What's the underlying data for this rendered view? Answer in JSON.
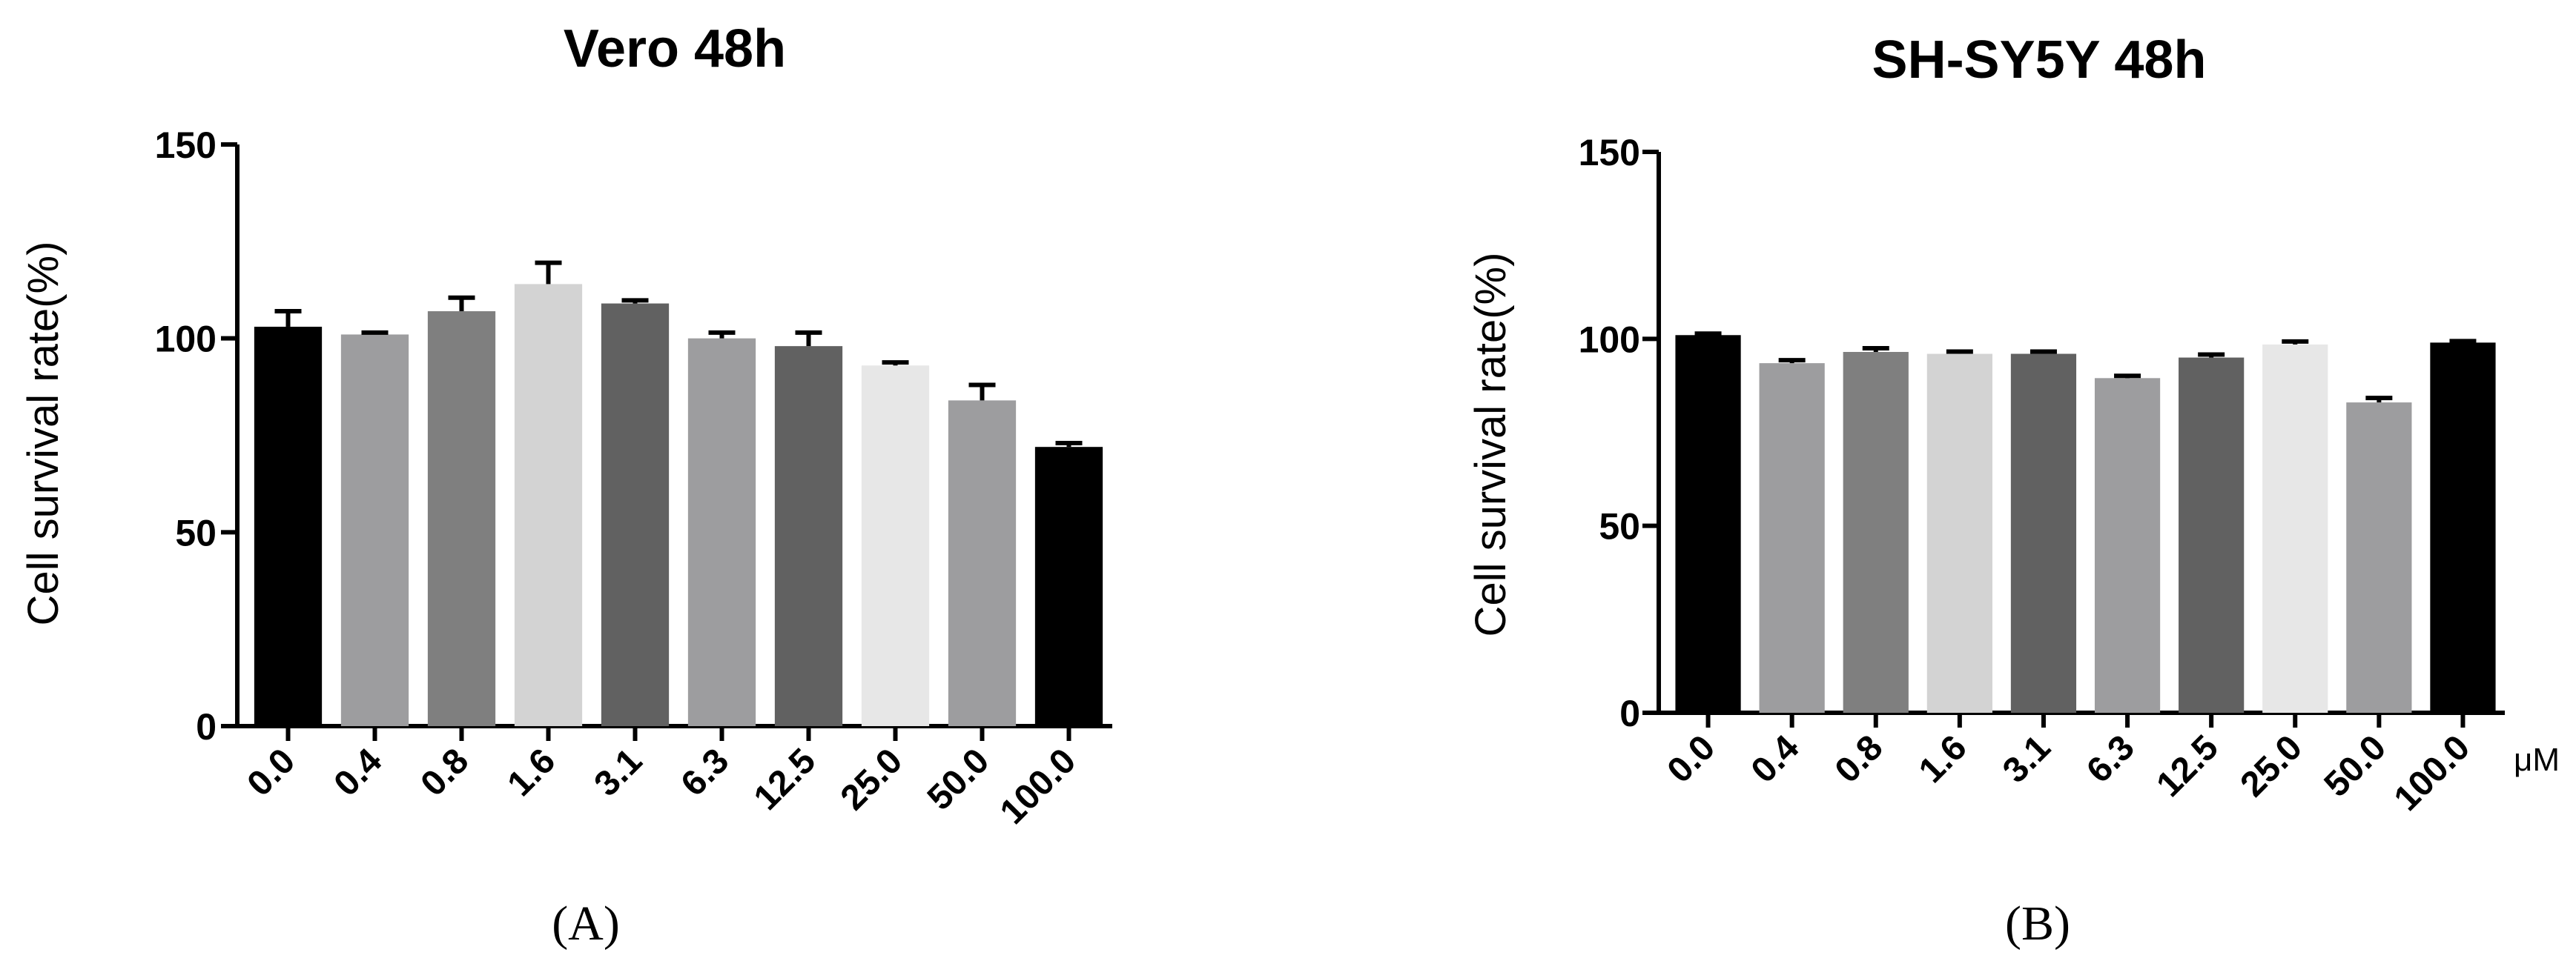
{
  "chart_data": [
    {
      "type": "bar",
      "title": "Vero   48h",
      "ylabel": "Cell survival rate(%)",
      "xlabel": "",
      "panel_label": "(A)",
      "unit_label": "",
      "categories": [
        "0.0",
        "0.4",
        "0.8",
        "1.6",
        "3.1",
        "6.3",
        "12.5",
        "25.0",
        "50.0",
        "100.0"
      ],
      "values": [
        103,
        101,
        107,
        114,
        109,
        100,
        98,
        93,
        84,
        72
      ],
      "errors": [
        4,
        0.5,
        3.5,
        5.5,
        0.8,
        1.5,
        3.5,
        0.8,
        4,
        1
      ],
      "colors": [
        "#000000",
        "#9d9d9f",
        "#7f7f7f",
        "#d3d3d3",
        "#616161",
        "#9d9d9f",
        "#616161",
        "#e7e7e7",
        "#9d9d9f",
        "#000000"
      ],
      "ylim": [
        0,
        150
      ],
      "yticks": [
        0,
        50,
        100,
        150
      ]
    },
    {
      "type": "bar",
      "title": "SH-SY5Y   48h",
      "ylabel": "Cell survival rate(%)",
      "xlabel": "",
      "panel_label": "(B)",
      "unit_label": "μM",
      "categories": [
        "0.0",
        "0.4",
        "0.8",
        "1.6",
        "3.1",
        "6.3",
        "12.5",
        "25.0",
        "50.0",
        "100.0"
      ],
      "values": [
        101,
        93.5,
        96.5,
        96,
        96,
        89.5,
        95,
        98.5,
        83,
        99
      ],
      "errors": [
        0.4,
        0.8,
        1,
        0.6,
        0.6,
        0.6,
        0.8,
        0.8,
        1.2,
        0.4
      ],
      "colors": [
        "#000000",
        "#9d9d9f",
        "#7f7f7f",
        "#d3d3d3",
        "#616161",
        "#9d9d9f",
        "#616161",
        "#e7e7e7",
        "#9d9d9f",
        "#000000"
      ],
      "ylim": [
        0,
        150
      ],
      "yticks": [
        0,
        50,
        100,
        150
      ]
    }
  ]
}
